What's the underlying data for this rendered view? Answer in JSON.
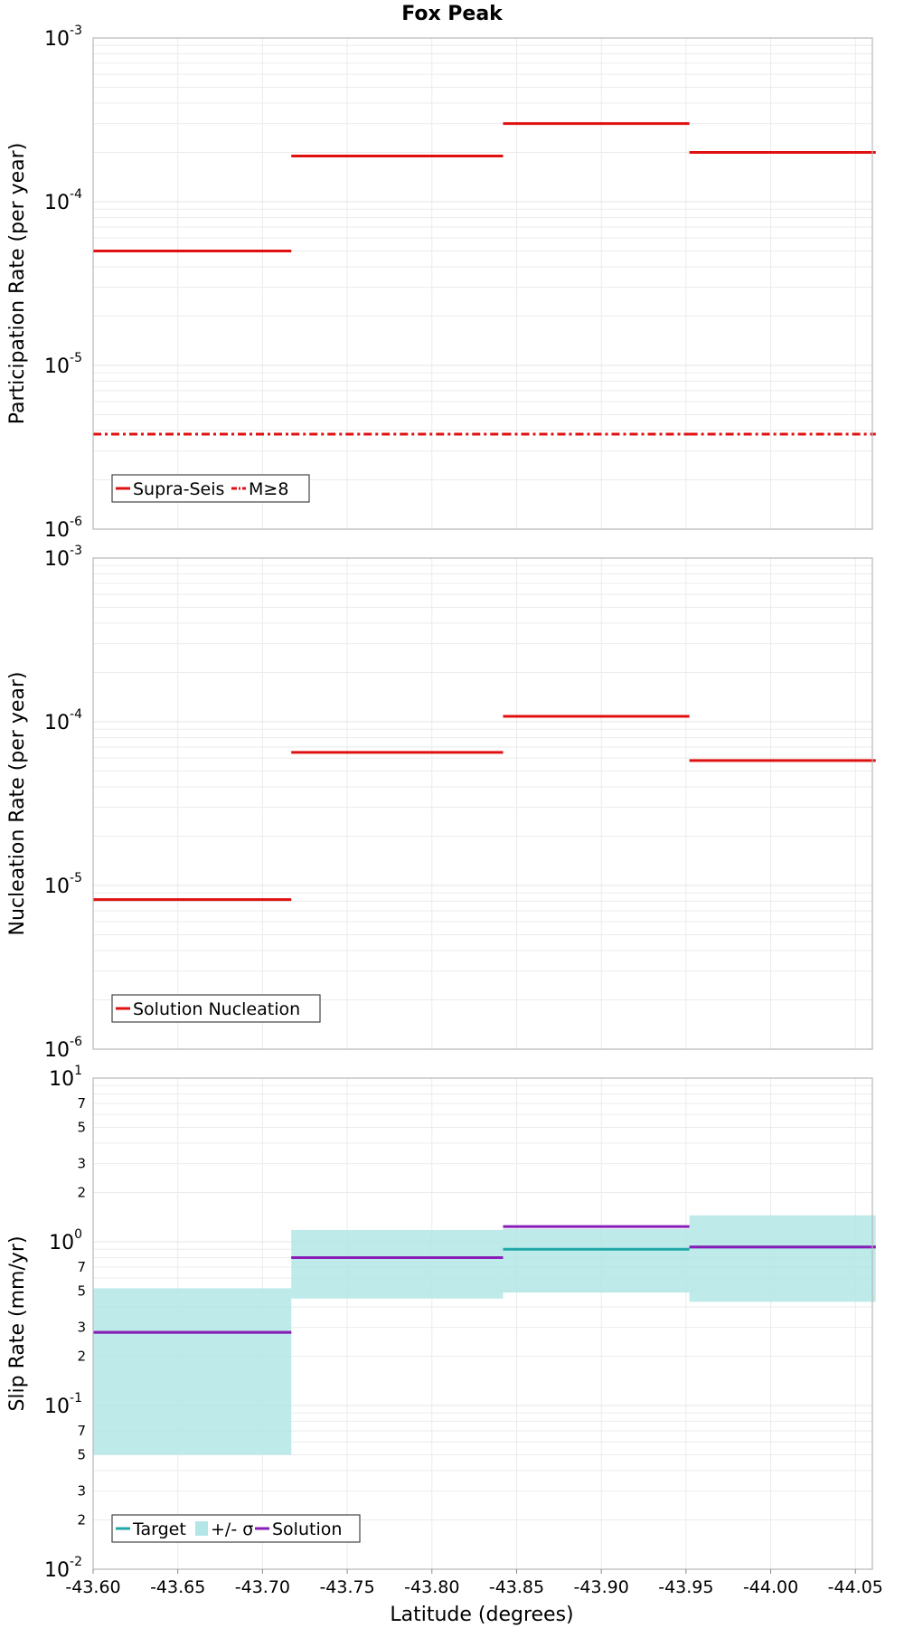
{
  "chart_data": {
    "title": "Fox Peak",
    "xlabel": "Latitude (degrees)",
    "xlim": [
      -43.6,
      -44.06
    ],
    "x_ticks": [
      "-43.60",
      "-43.65",
      "-43.70",
      "-43.75",
      "-43.80",
      "-43.85",
      "-43.90",
      "-43.95",
      "-44.00",
      "-44.05"
    ],
    "x_tick_values": [
      -43.6,
      -43.65,
      -43.7,
      -43.75,
      -43.8,
      -43.85,
      -43.9,
      -43.95,
      -44.0,
      -44.05
    ],
    "x_bins": [
      [
        -43.6,
        -43.717
      ],
      [
        -43.717,
        -43.842
      ],
      [
        -43.842,
        -43.952
      ],
      [
        -43.952,
        -44.062
      ]
    ],
    "panels": [
      {
        "type": "line",
        "ylabel": "Participation Rate (per year)",
        "yscale": "log",
        "ylim": [
          1e-06,
          0.001
        ],
        "y_major_exponents": [
          "-6",
          "-5",
          "-4",
          "-3"
        ],
        "series": [
          {
            "name": "Supra-Seis",
            "color": "#e01010",
            "style": "solid",
            "values": [
              5e-05,
              0.00019,
              0.0003,
              0.0002
            ]
          },
          {
            "name": "M≥8",
            "color": "#e01010",
            "style": "dashdot",
            "values": [
              3.8e-06,
              3.8e-06,
              3.8e-06,
              3.8e-06
            ]
          }
        ]
      },
      {
        "type": "line",
        "ylabel": "Nucleation Rate (per year)",
        "yscale": "log",
        "ylim": [
          1e-06,
          0.001
        ],
        "y_major_exponents": [
          "-6",
          "-5",
          "-4",
          "-3"
        ],
        "series": [
          {
            "name": "Solution Nucleation",
            "color": "#e01010",
            "style": "solid",
            "values": [
              8.2e-06,
              6.5e-05,
              0.000108,
              5.8e-05
            ]
          }
        ]
      },
      {
        "type": "line",
        "ylabel": "Slip Rate (mm/yr)",
        "yscale": "log",
        "ylim": [
          0.01,
          10
        ],
        "y_major_exponents": [
          "-2",
          "-1",
          "0",
          "1"
        ],
        "y_minor_labels": [
          "2",
          "3",
          "5",
          "7"
        ],
        "band": {
          "name": "+/- σ",
          "color": "#b3e6e6",
          "lower": [
            0.05,
            0.45,
            0.49,
            0.43
          ],
          "upper": [
            0.52,
            1.18,
            1.2,
            1.45
          ]
        },
        "series": [
          {
            "name": "Target",
            "color": "#20a8a8",
            "style": "solid",
            "values": [
              0.28,
              0.8,
              0.9,
              0.93
            ]
          },
          {
            "name": "Solution",
            "color": "#8a1cb8",
            "style": "solid",
            "values": [
              0.28,
              0.8,
              1.24,
              0.93
            ]
          }
        ]
      }
    ]
  }
}
